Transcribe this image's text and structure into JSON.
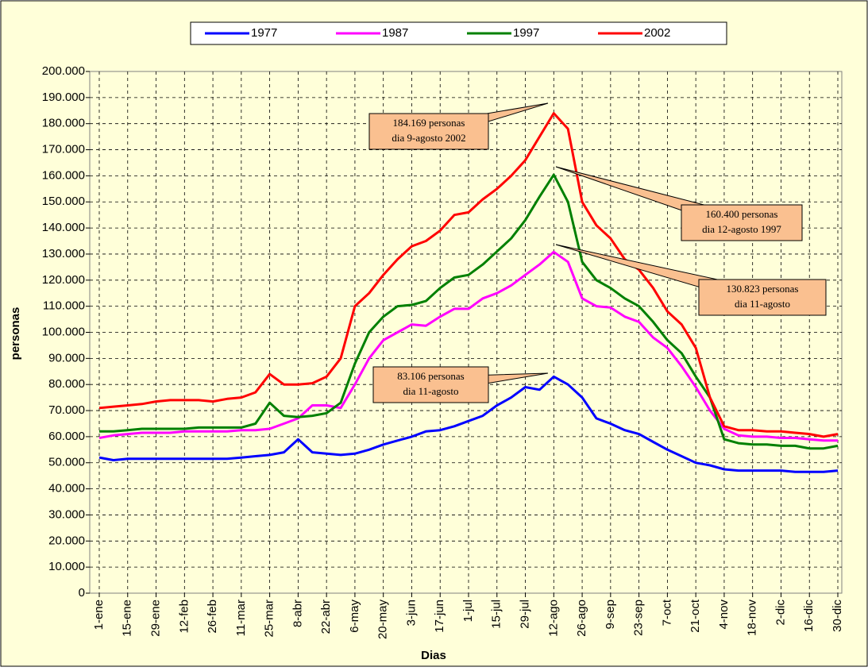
{
  "chart_data": {
    "type": "line",
    "x_label": "Dias",
    "y_label": "personas",
    "categories": [
      "1-ene",
      null,
      "15-ene",
      null,
      "29-ene",
      null,
      "12-feb",
      null,
      "26-feb",
      null,
      "11-mar",
      null,
      "25-mar",
      null,
      "8-abr",
      null,
      "22-abr",
      null,
      "6-may",
      null,
      "20-may",
      null,
      "3-jun",
      null,
      "17-jun",
      null,
      "1-jul",
      null,
      "15-jul",
      null,
      "29-jul",
      null,
      "12-ago",
      null,
      "26-ago",
      null,
      "9-sep",
      null,
      "23-sep",
      null,
      "7-oct",
      null,
      "21-oct",
      null,
      "4-nov",
      null,
      "18-nov",
      null,
      "2-dic",
      null,
      "16-dic",
      null,
      "30-dic"
    ],
    "series": [
      {
        "name": "1977",
        "color": "#0000ff",
        "values": [
          52000,
          51000,
          51500,
          51500,
          51500,
          51500,
          51500,
          51500,
          51500,
          51500,
          52000,
          52500,
          53000,
          54000,
          59000,
          54000,
          53500,
          53000,
          53500,
          55000,
          57000,
          58500,
          60000,
          62000,
          62500,
          64000,
          66000,
          68000,
          72000,
          75000,
          79000,
          78000,
          83000,
          80000,
          75000,
          67000,
          65000,
          62500,
          61000,
          58000,
          55000,
          52500,
          50000,
          49000,
          47500,
          47000,
          47000,
          47000,
          47000,
          46500,
          46500,
          46500,
          47000
        ]
      },
      {
        "name": "1987",
        "color": "#ff00ff",
        "values": [
          59500,
          60500,
          61000,
          61500,
          61500,
          61500,
          62000,
          62000,
          62000,
          62000,
          62500,
          62500,
          63000,
          65000,
          67000,
          72000,
          72000,
          71000,
          80000,
          90000,
          97000,
          100000,
          103000,
          102500,
          106000,
          109000,
          109000,
          113000,
          115000,
          118000,
          122000,
          126000,
          130800,
          127000,
          113000,
          110000,
          109500,
          106000,
          104000,
          98000,
          94000,
          87000,
          79000,
          70000,
          63000,
          60500,
          60000,
          60000,
          59500,
          59500,
          59000,
          58500,
          58500
        ]
      },
      {
        "name": "1997",
        "color": "#008000",
        "values": [
          62000,
          62000,
          62500,
          63000,
          63000,
          63000,
          63000,
          63500,
          63500,
          63500,
          63500,
          65000,
          73000,
          68000,
          67500,
          68000,
          69000,
          73000,
          88000,
          100000,
          106000,
          110000,
          110500,
          112000,
          117000,
          121000,
          122000,
          126000,
          131000,
          136000,
          143000,
          152000,
          160400,
          150000,
          127000,
          120000,
          117000,
          113000,
          110000,
          104000,
          97000,
          92000,
          83000,
          75000,
          59000,
          57500,
          57000,
          57000,
          56500,
          56500,
          55500,
          55500,
          56500
        ]
      },
      {
        "name": "2002",
        "color": "#ff0000",
        "values": [
          71000,
          71500,
          72000,
          72500,
          73500,
          74000,
          74000,
          74000,
          73500,
          74500,
          75000,
          77000,
          84000,
          80000,
          80000,
          80500,
          83000,
          90000,
          110000,
          115000,
          122000,
          128000,
          133000,
          135000,
          139000,
          145000,
          146000,
          151000,
          155000,
          160000,
          166000,
          175000,
          184000,
          178000,
          150000,
          141000,
          136000,
          128000,
          124000,
          117000,
          108000,
          103000,
          94000,
          75000,
          64000,
          62500,
          62500,
          62000,
          62000,
          61500,
          61000,
          60000,
          61000
        ]
      }
    ],
    "ylim": [
      0,
      200000
    ],
    "yticks": [
      0,
      {
        "value": 10000,
        "label": "10.000"
      },
      {
        "value": 20000,
        "label": "20.000"
      },
      {
        "value": 30000,
        "label": "30.000"
      },
      {
        "value": 40000,
        "label": "40.000"
      },
      {
        "value": 50000,
        "label": "50.000"
      },
      {
        "value": 60000,
        "label": "60.000"
      },
      {
        "value": 70000,
        "label": "70.000"
      },
      {
        "value": 80000,
        "label": "80.000"
      },
      {
        "value": 90000,
        "label": "90.000"
      },
      {
        "value": 100000,
        "label": "100.000"
      },
      {
        "value": 110000,
        "label": "110.000"
      },
      {
        "value": 120000,
        "label": "120.000"
      },
      {
        "value": 130000,
        "label": "130.000"
      },
      {
        "value": 140000,
        "label": "140.000"
      },
      {
        "value": 150000,
        "label": "150.000"
      },
      {
        "value": 160000,
        "label": "160.000"
      },
      {
        "value": 170000,
        "label": "170.000"
      },
      {
        "value": 180000,
        "label": "180.000"
      },
      {
        "value": 190000,
        "label": "190.000"
      },
      {
        "value": 200000,
        "label": "200.000"
      }
    ],
    "grid": true,
    "legend": "top",
    "annotations": [
      {
        "lines": [
          "184.169 personas",
          "dia 9-agosto 2002"
        ]
      },
      {
        "lines": [
          "160.400 personas",
          "dia 12-agosto 1997"
        ]
      },
      {
        "lines": [
          "130.823 personas",
          "dia 11-agosto"
        ]
      },
      {
        "lines": [
          "83.106 personas",
          "dia 11-agosto"
        ]
      }
    ]
  }
}
